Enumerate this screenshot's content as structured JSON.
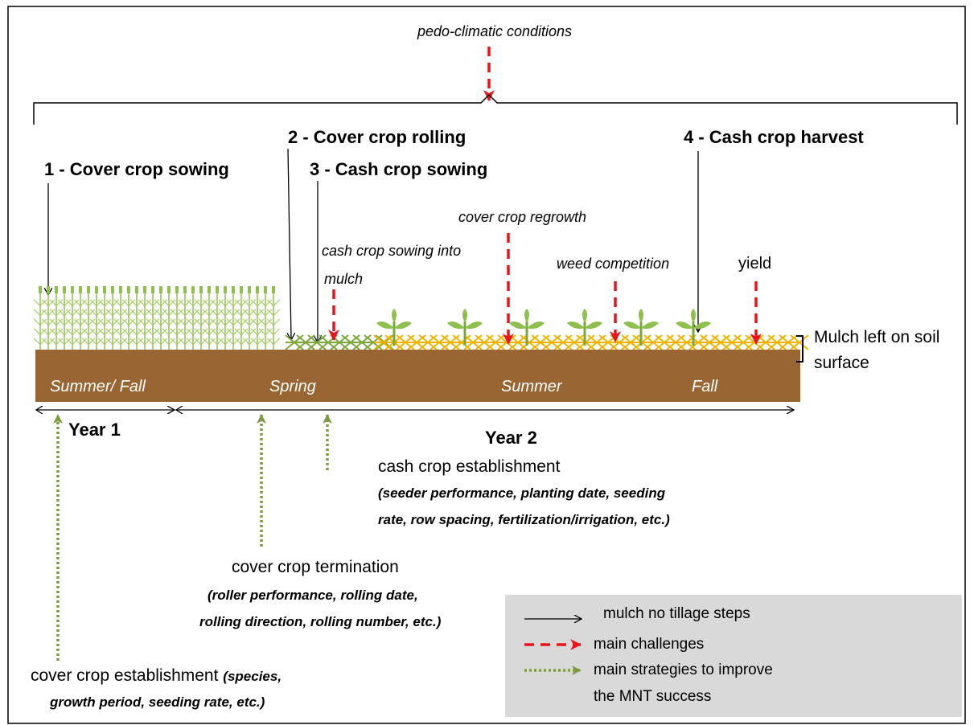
{
  "top": {
    "condition": "pedo-climatic conditions"
  },
  "steps": [
    "1 - Cover crop sowing",
    "2 - Cover crop rolling",
    "3 - Cash crop sowing",
    "4 - Cash crop harvest"
  ],
  "challenges": {
    "sowing_line1": "cash crop sowing into",
    "sowing_line2": "mulch",
    "regrowth": "cover crop regrowth",
    "weed": "weed competition",
    "yield": "yield"
  },
  "mulch": {
    "line1": "Mulch left on soil",
    "line2": "surface"
  },
  "seasons": [
    "Summer/ Fall",
    "Spring",
    "Summer",
    "Fall"
  ],
  "years": [
    "Year 1",
    "Year 2"
  ],
  "strategies": {
    "cash": {
      "title": "cash crop establishment",
      "line1": "(seeder performance, planting date, seeding",
      "line2": "rate, row spacing, fertilization/irrigation, etc.)"
    },
    "termination": {
      "title": "cover crop termination",
      "line1": "(roller performance, rolling date,",
      "line2": "rolling direction, rolling number, etc.)"
    },
    "cover": {
      "title": "cover crop establishment",
      "line1": "(species,",
      "line2": "growth period, seeding rate, etc.)"
    }
  },
  "legend": [
    "mulch no tillage steps",
    "main challenges",
    "main strategies to improve",
    "the MNT success"
  ]
}
